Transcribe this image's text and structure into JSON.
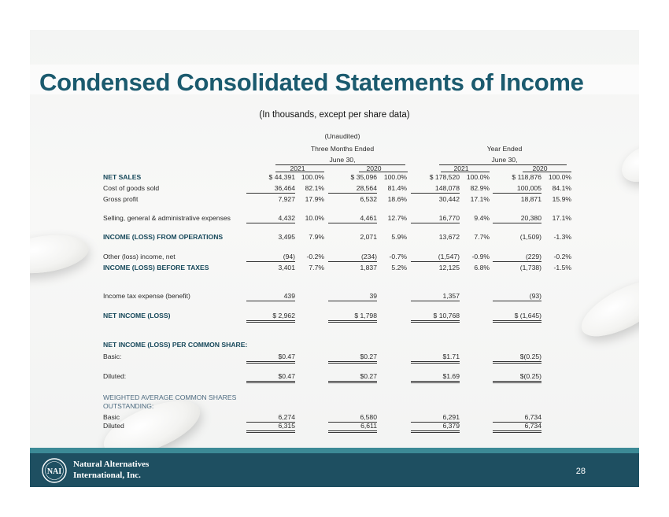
{
  "title": "Condensed Consolidated Statements of Income",
  "subtitle": "(In thousands, except per share data)",
  "headers": {
    "unaudited": "(Unaudited)",
    "three_months": "Three Months Ended",
    "year_ended": "Year Ended",
    "june30_a": "June 30,",
    "june30_b": "June 30,",
    "y2021_a": "2021",
    "y2020_a": "2020",
    "y2021_b": "2021",
    "y2020_b": "2020"
  },
  "rows": {
    "net_sales": {
      "label": "NET SALES",
      "c1": "$  44,391",
      "p1": "100.0%",
      "c2": "$  35,096",
      "p2": "100.0%",
      "c3": "$ 178,520",
      "p3": "100.0%",
      "c4": "$ 118,876",
      "p4": "100.0%"
    },
    "cogs": {
      "label": "Cost of goods sold",
      "c1": "36,464",
      "p1": "82.1%",
      "c2": "28,564",
      "p2": "81.4%",
      "c3": "148,078",
      "p3": "82.9%",
      "c4": "100,005",
      "p4": "84.1%"
    },
    "gross": {
      "label": "Gross profit",
      "c1": "7,927",
      "p1": "17.9%",
      "c2": "6,532",
      "p2": "18.6%",
      "c3": "30,442",
      "p3": "17.1%",
      "c4": "18,871",
      "p4": "15.9%"
    },
    "sga": {
      "label": "Selling, general & administrative expenses",
      "c1": "4,432",
      "p1": "10.0%",
      "c2": "4,461",
      "p2": "12.7%",
      "c3": "16,770",
      "p3": "9.4%",
      "c4": "20,380",
      "p4": "17.1%"
    },
    "ops": {
      "label": "INCOME (LOSS) FROM OPERATIONS",
      "c1": "3,495",
      "p1": "7.9%",
      "c2": "2,071",
      "p2": "5.9%",
      "c3": "13,672",
      "p3": "7.7%",
      "c4": "(1,509)",
      "p4": "-1.3%"
    },
    "other": {
      "label": "Other (loss) income, net",
      "c1": "(94)",
      "p1": "-0.2%",
      "c2": "(234)",
      "p2": "-0.7%",
      "c3": "(1,547)",
      "p3": "-0.9%",
      "c4": "(229)",
      "p4": "-0.2%"
    },
    "pretax": {
      "label": "INCOME (LOSS) BEFORE TAXES",
      "c1": "3,401",
      "p1": "7.7%",
      "c2": "1,837",
      "p2": "5.2%",
      "c3": "12,125",
      "p3": "6.8%",
      "c4": "(1,738)",
      "p4": "-1.5%"
    },
    "tax": {
      "label": "Income tax expense (benefit)",
      "c1": "439",
      "c2": "39",
      "c3": "1,357",
      "c4": "(93)"
    },
    "net": {
      "label": "NET INCOME (LOSS)",
      "c1": "$    2,962",
      "c2": "$    1,798",
      "c3": "$  10,768",
      "c4": "$   (1,645)"
    },
    "eps_head": {
      "label": "NET INCOME (LOSS) PER COMMON SHARE:"
    },
    "basic": {
      "label": "Basic:",
      "c1": "$0.47",
      "c2": "$0.27",
      "c3": "$1.71",
      "c4": "$(0.25)"
    },
    "diluted": {
      "label": "Diluted:",
      "c1": "$0.47",
      "c2": "$0.27",
      "c3": "$1.69",
      "c4": "$(0.25)"
    },
    "wa_head": {
      "label1": "WEIGHTED AVERAGE COMMON SHARES",
      "label2": "OUTSTANDING:"
    },
    "wa_basic": {
      "label": "Basic",
      "c1": "6,274",
      "c2": "6,580",
      "c3": "6,291",
      "c4": "6,734"
    },
    "wa_diluted": {
      "label": "Diluted",
      "c1": "6,315",
      "c2": "6,611",
      "c3": "6,379",
      "c4": "6,734"
    }
  },
  "footer": {
    "company_line1": "Natural Alternatives",
    "company_line2": "International, Inc.",
    "logo_text": "NAI",
    "page_number": "28"
  },
  "colors": {
    "title": "#1b5a6e",
    "footer": "#1e4f61",
    "stripe": "#3c8a96"
  }
}
